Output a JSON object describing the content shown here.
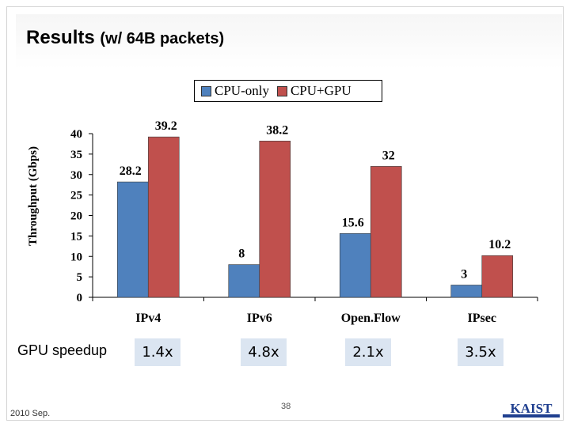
{
  "slide": {
    "title_main": "Results",
    "title_sub": "(w/ 64B packets)",
    "footer_date": "2010 Sep.",
    "page_number": "38",
    "logo_text": "KAIST"
  },
  "speedup": {
    "label": "GPU speedup",
    "values": [
      "1.4x",
      "4.8x",
      "2.1x",
      "3.5x"
    ]
  },
  "chart_data": {
    "type": "bar",
    "title": "",
    "xlabel": "",
    "ylabel": "Throughput (Gbps)",
    "categories": [
      "IPv4",
      "IPv6",
      "Open.Flow",
      "IPsec"
    ],
    "series": [
      {
        "name": "CPU-only",
        "values": [
          28.2,
          8,
          15.6,
          3
        ],
        "color": "#4f81bd",
        "labels": [
          "28.2",
          "8",
          "15.6",
          "3"
        ]
      },
      {
        "name": "CPU+GPU",
        "values": [
          39.2,
          38.2,
          32,
          10.2
        ],
        "color": "#c0504d",
        "labels": [
          "39.2",
          "38.2",
          "32",
          "10.2"
        ]
      }
    ],
    "ylim": [
      0,
      40
    ],
    "yticks": [
      "0",
      "5",
      "10",
      "15",
      "20",
      "25",
      "30",
      "35",
      "40"
    ],
    "legend_position": "top-center",
    "grid": false
  }
}
